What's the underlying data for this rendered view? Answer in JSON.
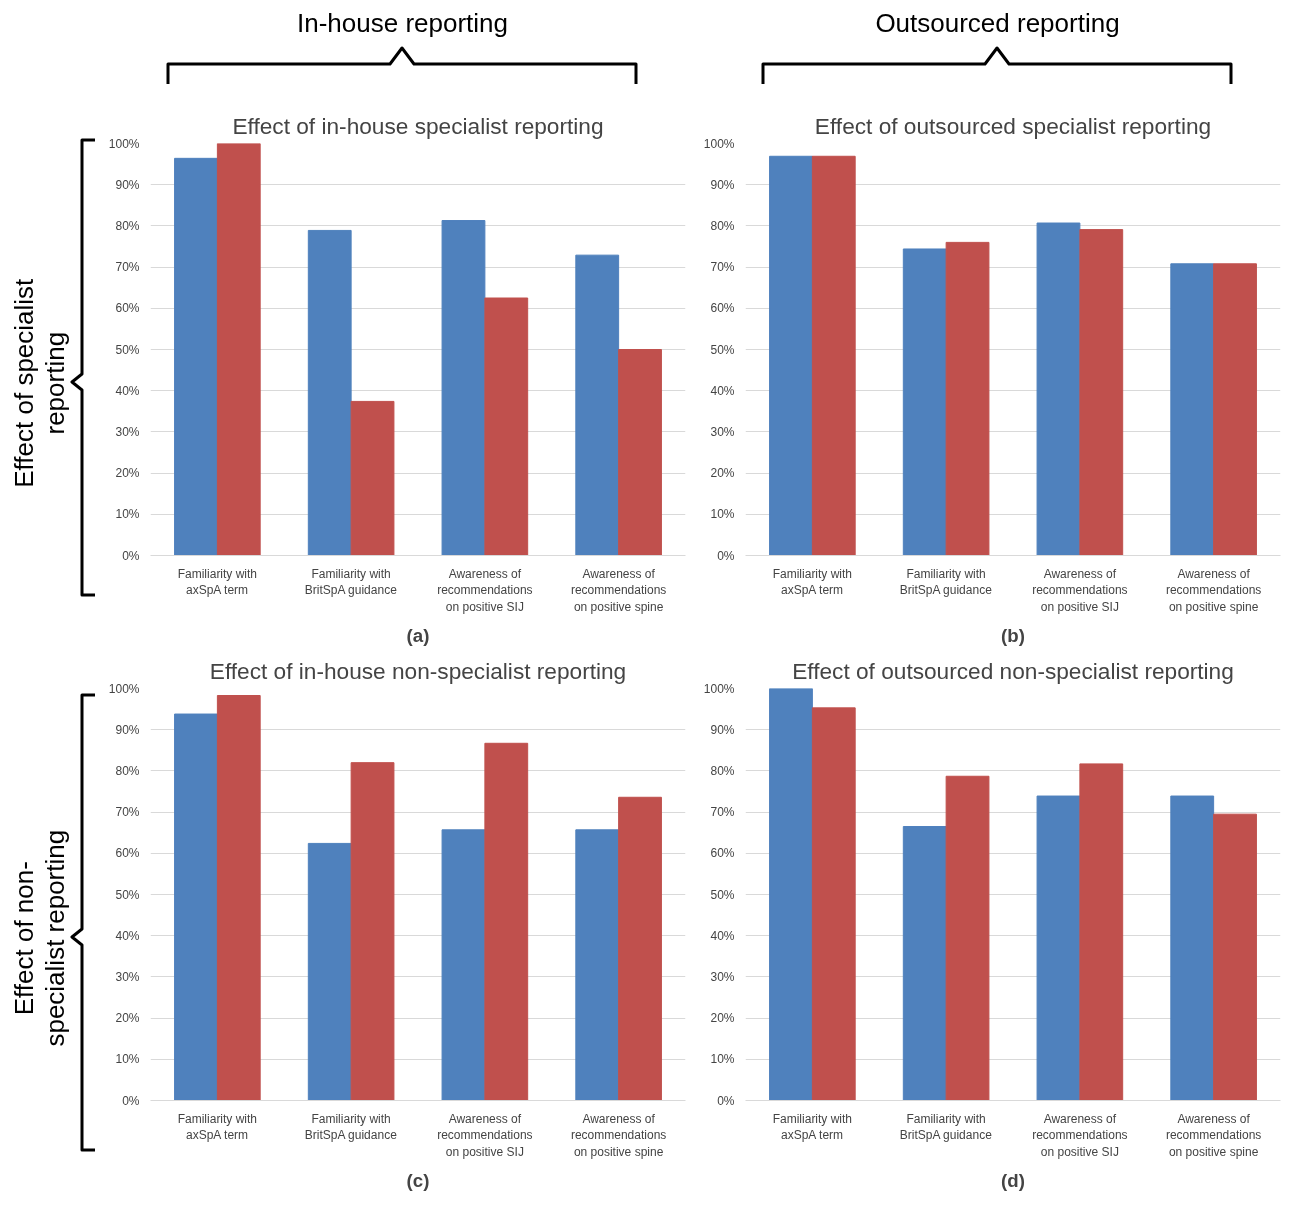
{
  "chart_data": [
    {
      "type": "bar",
      "title": "Effect of in-house specialist reporting",
      "categories": [
        "Familiarity with axSpA term",
        "Familiarity with BritSpA guidance",
        "Awareness of recommendations on positive SIJ",
        "Awareness of recommendations on positive spine"
      ],
      "series": [
        {
          "color": "#4f81bd",
          "values": [
            96.4,
            78.9,
            81.3,
            72.9
          ]
        },
        {
          "color": "#c0504d",
          "values": [
            100,
            37.4,
            62.5,
            50
          ]
        }
      ],
      "ylim": [
        0,
        100
      ],
      "yticks": [
        {
          "value": 0,
          "label": "0%"
        },
        {
          "value": 10,
          "label": "10%"
        },
        {
          "value": 20,
          "label": "20%"
        },
        {
          "value": 30,
          "label": "30%"
        },
        {
          "value": 40,
          "label": "40%"
        },
        {
          "value": 50,
          "label": "50%"
        },
        {
          "value": 60,
          "label": "60%"
        },
        {
          "value": 70,
          "label": "70%"
        },
        {
          "value": 80,
          "label": "80%"
        },
        {
          "value": 90,
          "label": "90%"
        },
        {
          "value": 100,
          "label": "100%"
        }
      ],
      "grid": "y",
      "annotations": [
        "In-house reporting",
        "Effect of specialist reporting",
        "(a)"
      ]
    },
    {
      "type": "bar",
      "title": "Effect of in-house non-specialist reporting",
      "categories": [
        "Familiarity with axSpA term",
        "Familiarity with BritSpA guidance",
        "Awareness of recommendations on positive SIJ",
        "Awareness of recommendations on positive spine"
      ],
      "series": [
        {
          "color": "#4f81bd",
          "values": [
            93.8,
            62.4,
            65.7,
            65.7
          ]
        },
        {
          "color": "#c0504d",
          "values": [
            98.3,
            82.0,
            86.7,
            73.6
          ]
        }
      ],
      "ylim": [
        0,
        100
      ],
      "yticks": [
        {
          "value": 0,
          "label": "0%"
        },
        {
          "value": 10,
          "label": "10%"
        },
        {
          "value": 20,
          "label": "20%"
        },
        {
          "value": 30,
          "label": "30%"
        },
        {
          "value": 40,
          "label": "40%"
        },
        {
          "value": 50,
          "label": "50%"
        },
        {
          "value": 60,
          "label": "60%"
        },
        {
          "value": 70,
          "label": "70%"
        },
        {
          "value": 80,
          "label": "80%"
        },
        {
          "value": 90,
          "label": "90%"
        },
        {
          "value": 100,
          "label": "100%"
        }
      ],
      "grid": "y",
      "annotations": [
        "Effect of non-specialist reporting",
        "(c)"
      ]
    },
    {
      "type": "bar",
      "title": "Effect of outsourced specialist reporting",
      "categories": [
        "Familiarity with axSpA term",
        "Familiarity with BritSpA guidance",
        "Awareness of recommendations on positive SIJ",
        "Awareness of recommendations on positive spine"
      ],
      "series": [
        {
          "color": "#4f81bd",
          "values": [
            96.9,
            74.4,
            80.7,
            70.8
          ]
        },
        {
          "color": "#c0504d",
          "values": [
            96.9,
            76.0,
            79.1,
            70.8
          ]
        }
      ],
      "ylim": [
        0,
        100
      ],
      "yticks": [
        {
          "value": 0,
          "label": "0%"
        },
        {
          "value": 10,
          "label": "10%"
        },
        {
          "value": 20,
          "label": "20%"
        },
        {
          "value": 30,
          "label": "30%"
        },
        {
          "value": 40,
          "label": "40%"
        },
        {
          "value": 50,
          "label": "50%"
        },
        {
          "value": 60,
          "label": "60%"
        },
        {
          "value": 70,
          "label": "70%"
        },
        {
          "value": 80,
          "label": "80%"
        },
        {
          "value": 90,
          "label": "90%"
        },
        {
          "value": 100,
          "label": "100%"
        }
      ],
      "grid": "y",
      "annotations": [
        "Outsourced reporting",
        "(b)"
      ]
    },
    {
      "type": "bar",
      "title": "Effect of outsourced non-specialist reporting",
      "categories": [
        "Familiarity with axSpA term",
        "Familiarity with BritSpA guidance",
        "Awareness of recommendations on positive SIJ",
        "Awareness of recommendations on positive spine"
      ],
      "series": [
        {
          "color": "#4f81bd",
          "values": [
            100,
            66.5,
            73.9,
            73.9
          ]
        },
        {
          "color": "#c0504d",
          "values": [
            95.3,
            78.7,
            81.7,
            69.5
          ]
        }
      ],
      "ylim": [
        0,
        100
      ],
      "yticks": [
        {
          "value": 0,
          "label": "0%"
        },
        {
          "value": 10,
          "label": "10%"
        },
        {
          "value": 20,
          "label": "20%"
        },
        {
          "value": 30,
          "label": "30%"
        },
        {
          "value": 40,
          "label": "40%"
        },
        {
          "value": 50,
          "label": "50%"
        },
        {
          "value": 60,
          "label": "60%"
        },
        {
          "value": 70,
          "label": "70%"
        },
        {
          "value": 80,
          "label": "80%"
        },
        {
          "value": 90,
          "label": "90%"
        },
        {
          "value": 100,
          "label": "100%"
        }
      ],
      "grid": "y",
      "annotations": [
        "(d)"
      ]
    }
  ]
}
